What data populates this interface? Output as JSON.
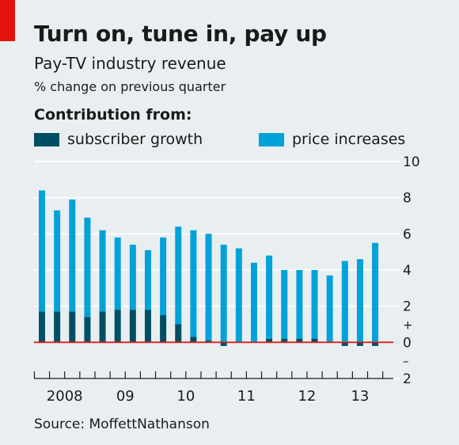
{
  "header": {
    "title": "Turn on, tune in, pay up",
    "subtitle": "Pay-TV industry revenue",
    "unit": "% change on previous quarter"
  },
  "legend": {
    "title": "Contribution from:",
    "items": [
      {
        "label": "subscriber growth",
        "color": "#004e63"
      },
      {
        "label": "price increases",
        "color": "#01a2d9"
      }
    ]
  },
  "source": "Source: MoffettNathanson",
  "colors": {
    "accent_red": "#e3120b",
    "zero_line": "#d6201d",
    "grid": "#ffffff",
    "background": "#e9eff1"
  },
  "chart_data": {
    "type": "bar",
    "stacked": true,
    "x_tick_labels": [
      "2008",
      "09",
      "10",
      "11",
      "12",
      "13"
    ],
    "y_ticks": [
      "10",
      "8",
      "6",
      "4",
      "2",
      "+",
      "0",
      "–",
      "2"
    ],
    "ylim": [
      -2,
      10
    ],
    "grid": true,
    "legend_position": "top",
    "quarters": [
      "2008 Q1",
      "2008 Q2",
      "2008 Q3",
      "2008 Q4",
      "2009 Q1",
      "2009 Q2",
      "2009 Q3",
      "2009 Q4",
      "2010 Q1",
      "2010 Q2",
      "2010 Q3",
      "2010 Q4",
      "2011 Q1",
      "2011 Q2",
      "2011 Q3",
      "2011 Q4",
      "2012 Q1",
      "2012 Q2",
      "2012 Q3",
      "2012 Q4",
      "2013 Q1",
      "2013 Q2",
      "2013 Q3"
    ],
    "series": [
      {
        "name": "subscriber growth",
        "values": [
          1.7,
          1.7,
          1.7,
          1.4,
          1.7,
          1.8,
          1.8,
          1.8,
          1.5,
          1.0,
          0.3,
          0.1,
          -0.2,
          0.0,
          0.0,
          0.2,
          0.2,
          0.2,
          0.2,
          0.0,
          -0.2,
          -0.2,
          -0.2
        ]
      },
      {
        "name": "price increases",
        "values": [
          6.7,
          5.6,
          6.2,
          5.5,
          4.5,
          4.0,
          3.6,
          3.3,
          4.3,
          5.4,
          5.9,
          5.9,
          5.4,
          5.2,
          4.4,
          4.6,
          3.8,
          3.8,
          3.8,
          3.7,
          4.5,
          4.6,
          5.5
        ]
      }
    ]
  }
}
